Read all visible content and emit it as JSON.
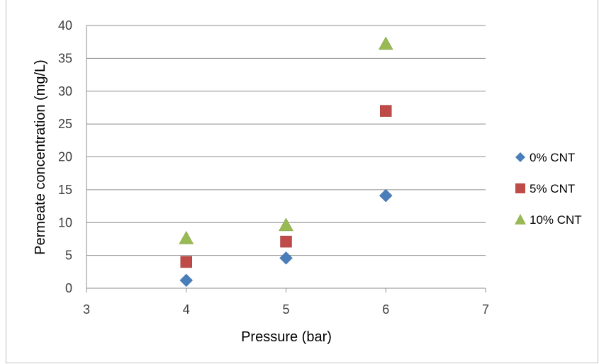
{
  "chart_data": {
    "type": "scatter",
    "title": "",
    "xlabel": "Pressure (bar)",
    "ylabel": "Permeate concentration (mg/L)",
    "xlim": [
      3,
      7
    ],
    "ylim": [
      0,
      40
    ],
    "xticks": [
      3,
      4,
      5,
      6,
      7
    ],
    "yticks": [
      0,
      5,
      10,
      15,
      20,
      25,
      30,
      35,
      40
    ],
    "grid": "horizontal",
    "legend_position": "right",
    "series": [
      {
        "name": "0% CNT",
        "marker": "diamond",
        "color": "#4a7ebb",
        "x": [
          4,
          5,
          6
        ],
        "y": [
          1.2,
          4.6,
          14.1
        ]
      },
      {
        "name": "5% CNT",
        "marker": "square",
        "color": "#be4b48",
        "x": [
          4,
          5,
          6
        ],
        "y": [
          4.0,
          7.1,
          27.0
        ]
      },
      {
        "name": "10% CNT",
        "marker": "triangle",
        "color": "#98b954",
        "x": [
          4,
          5,
          6
        ],
        "y": [
          7.6,
          9.6,
          37.2
        ]
      }
    ]
  }
}
